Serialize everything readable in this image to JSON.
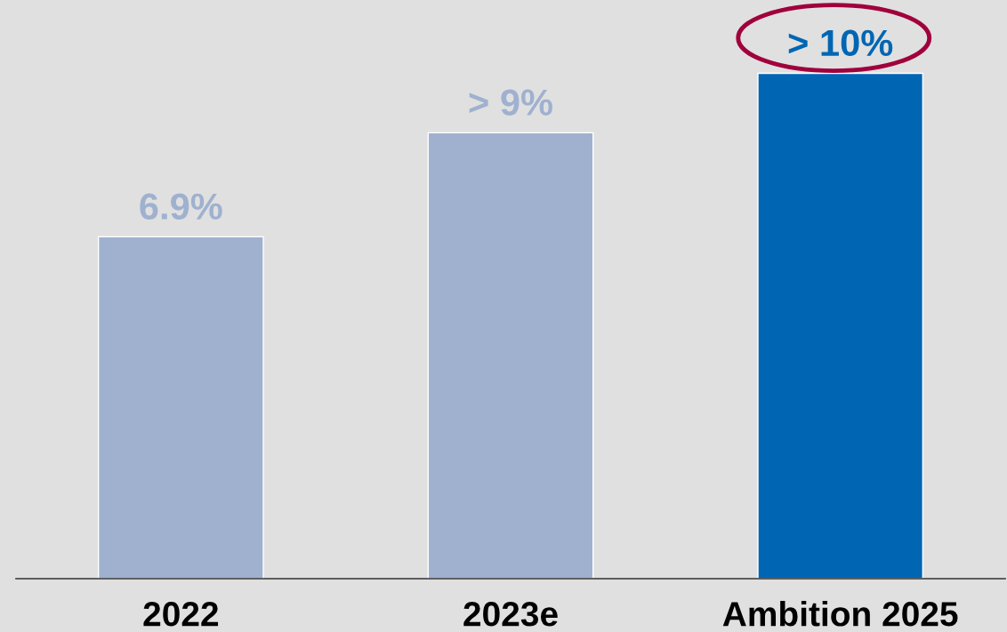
{
  "chart_data": {
    "type": "bar",
    "categories": [
      "2022",
      "2023e",
      "Ambition 2025"
    ],
    "values": [
      6.9,
      9.0,
      10.2
    ],
    "colors": [
      "#9fb1cf",
      "#9fb1cf",
      "#0066b3"
    ],
    "value_labels": [
      "6.9%",
      "> 9%",
      "> 10%"
    ],
    "grid": false,
    "legend": false
  }
}
